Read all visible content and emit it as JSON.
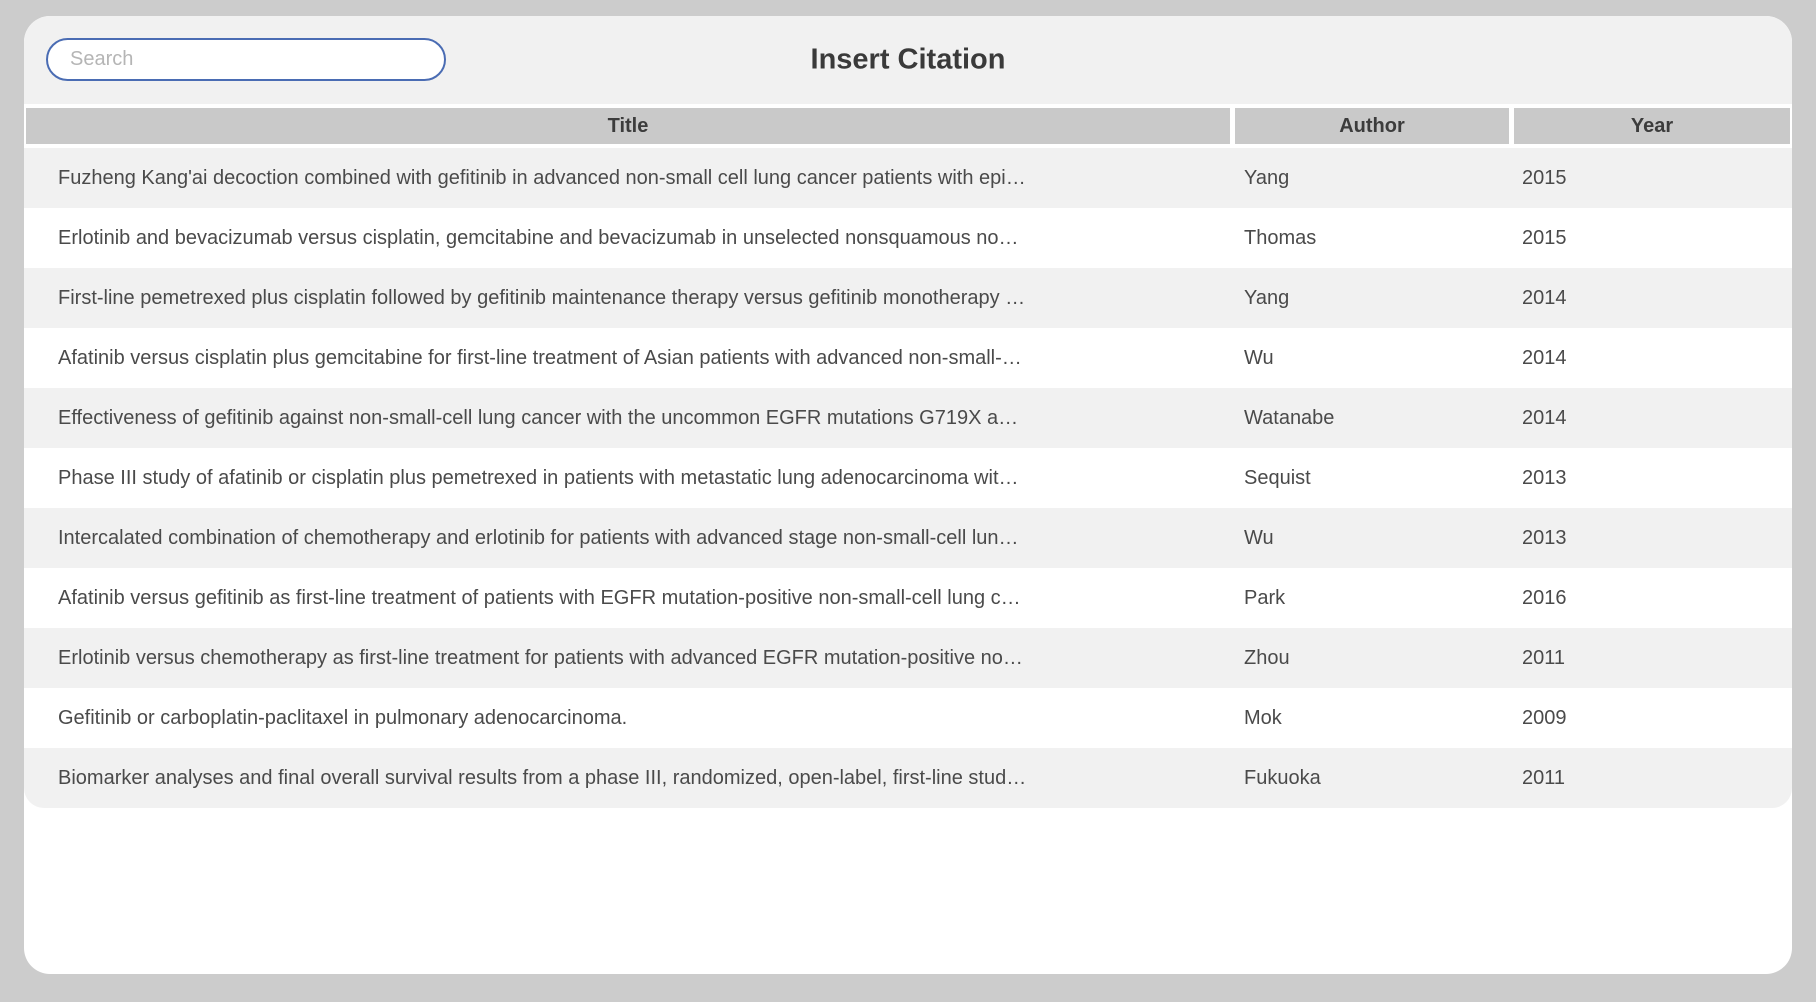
{
  "dialog": {
    "title": "Insert Citation",
    "search": {
      "placeholder": "Search",
      "value": ""
    },
    "table": {
      "columns": {
        "title": "Title",
        "author": "Author",
        "year": "Year"
      },
      "rows": [
        {
          "title": "Fuzheng Kang'ai decoction combined with gefitinib in advanced non-small cell lung cancer patients with epi…",
          "author": "Yang",
          "year": "2015"
        },
        {
          "title": "Erlotinib and bevacizumab versus cisplatin, gemcitabine and bevacizumab in unselected nonsquamous no…",
          "author": "Thomas",
          "year": "2015"
        },
        {
          "title": "First-line pemetrexed plus cisplatin followed by gefitinib maintenance therapy versus gefitinib monotherapy …",
          "author": "Yang",
          "year": "2014"
        },
        {
          "title": "Afatinib versus cisplatin plus gemcitabine for first-line treatment of Asian patients with advanced non-small-…",
          "author": "Wu",
          "year": "2014"
        },
        {
          "title": "Effectiveness of gefitinib against non-small-cell lung cancer with the uncommon EGFR mutations G719X a…",
          "author": "Watanabe",
          "year": "2014"
        },
        {
          "title": "Phase III study of afatinib or cisplatin plus pemetrexed in patients with metastatic lung adenocarcinoma wit…",
          "author": "Sequist",
          "year": "2013"
        },
        {
          "title": "Intercalated combination of chemotherapy and erlotinib for patients with advanced stage non-small-cell lun…",
          "author": "Wu",
          "year": "2013"
        },
        {
          "title": "Afatinib versus gefitinib as first-line treatment of patients with EGFR mutation-positive non-small-cell lung c…",
          "author": "Park",
          "year": "2016"
        },
        {
          "title": "Erlotinib versus chemotherapy as first-line treatment for patients with advanced EGFR mutation-positive no…",
          "author": "Zhou",
          "year": "2011"
        },
        {
          "title": "Gefitinib or carboplatin-paclitaxel in pulmonary adenocarcinoma.",
          "author": "Mok",
          "year": "2009"
        },
        {
          "title": "Biomarker analyses and final overall survival results from a phase III, randomized, open-label, first-line stud…",
          "author": "Fukuoka",
          "year": "2011"
        }
      ]
    }
  },
  "colors": {
    "page_bg": "#cccccc",
    "panel_bg": "#f1f1f1",
    "header_cell_bg": "#c9c9c9",
    "row_alt_bg": "#ffffff",
    "search_border": "#4a6cb3",
    "title_text": "#3a3a3a",
    "row_text": "#4a4a4a"
  }
}
